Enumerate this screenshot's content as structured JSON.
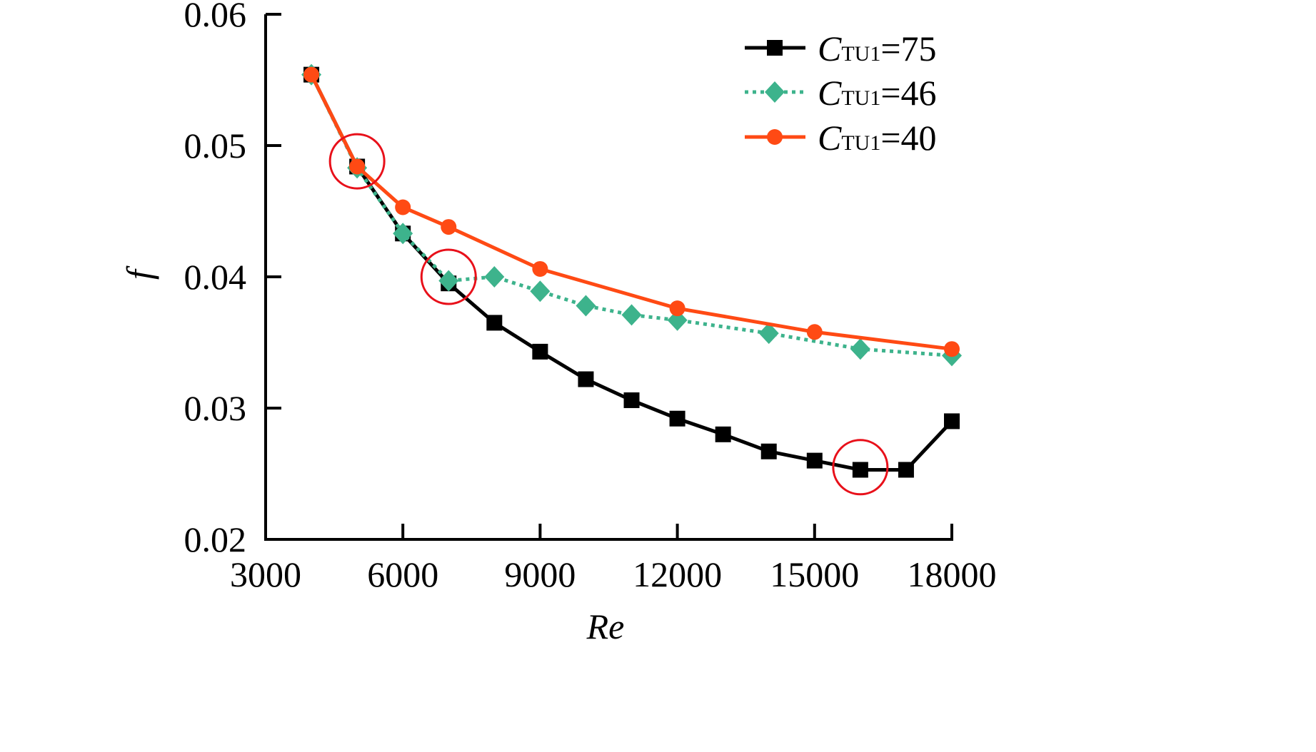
{
  "chart_data": {
    "type": "line",
    "title": "",
    "xlabel": "Re",
    "ylabel": "f",
    "xlim": [
      3000,
      18000
    ],
    "ylim": [
      0.02,
      0.06
    ],
    "xticks": [
      3000,
      6000,
      9000,
      12000,
      15000,
      18000
    ],
    "xtick_labels": [
      "3000",
      "6000",
      "9000",
      "12000",
      "15000",
      "18000"
    ],
    "yticks": [
      0.02,
      0.03,
      0.04,
      0.05,
      0.06
    ],
    "ytick_labels": [
      "0.02",
      "0.03",
      "0.04",
      "0.05",
      "0.06"
    ],
    "grid": false,
    "legend_position": "top-right",
    "series": [
      {
        "name": "CTU1=75",
        "label_main": "C",
        "label_sub": "TU1",
        "label_value": "=75",
        "color": "#000000",
        "marker": "square",
        "line_style": "solid",
        "x": [
          4000,
          5000,
          6000,
          7000,
          8000,
          9000,
          10000,
          11000,
          12000,
          13000,
          14000,
          15000,
          16000,
          17000,
          18000
        ],
        "y": [
          0.0554,
          0.0484,
          0.0433,
          0.0395,
          0.0365,
          0.0343,
          0.0322,
          0.0306,
          0.0292,
          0.028,
          0.0267,
          0.026,
          0.0253,
          0.0253,
          0.029
        ]
      },
      {
        "name": "CTU1=46",
        "label_main": "C",
        "label_sub": "TU1",
        "label_value": "=46",
        "color": "#3db38c",
        "marker": "diamond",
        "line_style": "dotted",
        "x": [
          4000,
          5000,
          6000,
          7000,
          8000,
          9000,
          10000,
          11000,
          12000,
          14000,
          16000,
          18000
        ],
        "y": [
          0.0554,
          0.0483,
          0.0433,
          0.0397,
          0.04,
          0.0389,
          0.0378,
          0.0371,
          0.0367,
          0.0357,
          0.0345,
          0.034
        ]
      },
      {
        "name": "CTU1=40",
        "label_main": "C",
        "label_sub": "TU1",
        "label_value": "=40",
        "color": "#ff4a14",
        "marker": "circle",
        "line_style": "solid",
        "x": [
          4000,
          5000,
          6000,
          7000,
          9000,
          12000,
          15000,
          18000
        ],
        "y": [
          0.0554,
          0.0484,
          0.0453,
          0.0438,
          0.0406,
          0.0376,
          0.0358,
          0.0345
        ]
      }
    ],
    "annotations": [
      {
        "type": "circle",
        "x": 5000,
        "y": 0.0488,
        "color": "#e8101a"
      },
      {
        "type": "circle",
        "x": 7000,
        "y": 0.04,
        "color": "#e8101a"
      },
      {
        "type": "circle",
        "x": 16000,
        "y": 0.0255,
        "color": "#e8101a"
      }
    ]
  }
}
